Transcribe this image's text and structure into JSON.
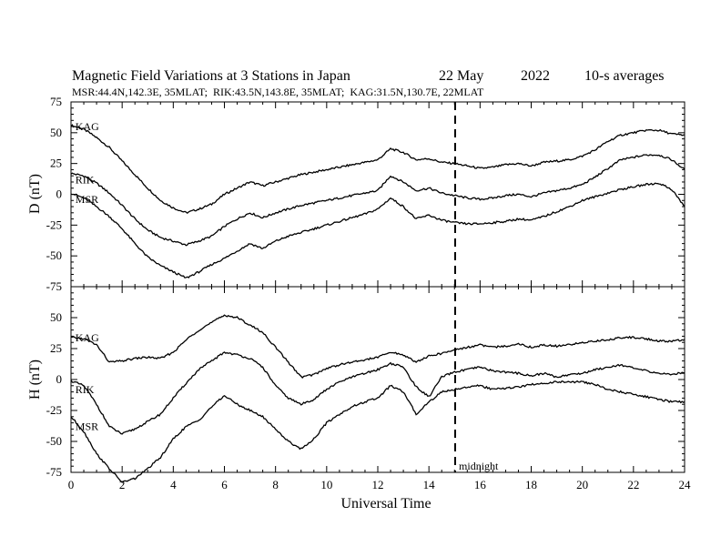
{
  "header": {
    "title": "Magnetic Field Variations at 3 Stations in Japan",
    "date": "22 May",
    "year": "2022",
    "averaging": "10-s averages",
    "stations_line": "MSR:44.4N,142.3E, 35MLAT;  RIK:43.5N,143.8E, 35MLAT;  KAG:31.5N,130.7E, 22MLAT"
  },
  "chart_data": [
    {
      "type": "line",
      "ylabel": "D (nT)",
      "xlabel": "",
      "xlim": [
        0,
        24
      ],
      "ylim": [
        -75,
        75
      ],
      "yticks": [
        -75,
        -50,
        -25,
        0,
        25,
        50,
        75
      ],
      "series": [
        {
          "name": "KAG",
          "x": [
            0,
            0.5,
            1,
            1.5,
            2,
            2.5,
            3,
            3.5,
            4,
            4.5,
            5,
            5.5,
            6,
            6.5,
            7,
            7.5,
            8,
            8.5,
            9,
            9.5,
            10,
            10.5,
            11,
            11.5,
            12,
            12.5,
            13,
            13.5,
            14,
            14.5,
            15,
            15.5,
            16,
            16.5,
            17,
            17.5,
            18,
            18.5,
            19,
            19.5,
            20,
            20.5,
            21,
            21.5,
            22,
            22.5,
            23,
            23.5,
            24
          ],
          "values": [
            56,
            53,
            46,
            38,
            27,
            16,
            5,
            -5,
            -11,
            -15,
            -12,
            -8,
            0,
            5,
            10,
            7,
            10,
            13,
            16,
            18,
            20,
            22,
            24,
            26,
            28,
            37,
            34,
            28,
            29,
            26,
            25,
            23,
            21,
            22,
            24,
            25,
            23,
            26,
            27,
            28,
            31,
            36,
            43,
            48,
            50,
            52,
            52,
            49,
            48
          ]
        },
        {
          "name": "RIK",
          "x": [
            0,
            0.5,
            1,
            1.5,
            2,
            2.5,
            3,
            3.5,
            4,
            4.5,
            5,
            5.5,
            6,
            6.5,
            7,
            7.5,
            8,
            8.5,
            9,
            9.5,
            10,
            10.5,
            11,
            11.5,
            12,
            12.5,
            13,
            13.5,
            14,
            14.5,
            15,
            15.5,
            16,
            16.5,
            17,
            17.5,
            18,
            18.5,
            19,
            19.5,
            20,
            20.5,
            21,
            21.5,
            22,
            22.5,
            23,
            23.5,
            24
          ],
          "values": [
            17,
            15,
            9,
            1,
            -9,
            -20,
            -29,
            -35,
            -38,
            -41,
            -38,
            -34,
            -26,
            -20,
            -15,
            -19,
            -15,
            -12,
            -9,
            -7,
            -5,
            -3,
            -1,
            1,
            3,
            15,
            10,
            3,
            5,
            1,
            -1,
            -3,
            -4,
            -3,
            -1,
            0,
            -2,
            1,
            3,
            5,
            8,
            14,
            21,
            28,
            30,
            32,
            32,
            28,
            20
          ]
        },
        {
          "name": "MSR",
          "x": [
            0,
            0.5,
            1,
            1.5,
            2,
            2.5,
            3,
            3.5,
            4,
            4.5,
            5,
            5.5,
            6,
            6.5,
            7,
            7.5,
            8,
            8.5,
            9,
            9.5,
            10,
            10.5,
            11,
            11.5,
            12,
            12.5,
            13,
            13.5,
            14,
            14.5,
            15,
            15.5,
            16,
            16.5,
            17,
            17.5,
            18,
            18.5,
            19,
            19.5,
            20,
            20.5,
            21,
            21.5,
            22,
            22.5,
            23,
            23.5,
            24
          ],
          "values": [
            1,
            -3,
            -10,
            -18,
            -28,
            -40,
            -51,
            -58,
            -63,
            -68,
            -63,
            -57,
            -52,
            -46,
            -40,
            -44,
            -38,
            -34,
            -31,
            -28,
            -25,
            -22,
            -19,
            -16,
            -12,
            -3,
            -10,
            -20,
            -17,
            -21,
            -23,
            -24,
            -24,
            -23,
            -22,
            -20,
            -21,
            -18,
            -14,
            -10,
            -5,
            -2,
            1,
            4,
            6,
            8,
            9,
            4,
            -10
          ]
        }
      ],
      "annotations": [
        {
          "text": "KAG",
          "x": 0.1,
          "y": 55
        },
        {
          "text": "RIK",
          "x": 0.1,
          "y": 12
        },
        {
          "text": "MSR",
          "x": 0.1,
          "y": -4
        }
      ]
    },
    {
      "type": "line",
      "ylabel": "H (nT)",
      "xlabel": "Universal Time",
      "xlim": [
        0,
        24
      ],
      "ylim": [
        -75,
        75
      ],
      "yticks": [
        -75,
        -50,
        -25,
        0,
        25,
        50
      ],
      "xticks": [
        0,
        2,
        4,
        6,
        8,
        10,
        12,
        14,
        16,
        18,
        20,
        22,
        24
      ],
      "series": [
        {
          "name": "KAG",
          "x": [
            0,
            0.5,
            1,
            1.5,
            2,
            2.5,
            3,
            3.5,
            4,
            4.5,
            5,
            5.5,
            6,
            6.5,
            7,
            7.5,
            8,
            8.5,
            9,
            9.5,
            10,
            10.5,
            11,
            11.5,
            12,
            12.5,
            13,
            13.5,
            14,
            14.5,
            15,
            15.5,
            16,
            16.5,
            17,
            17.5,
            18,
            18.5,
            19,
            19.5,
            20,
            20.5,
            21,
            21.5,
            22,
            22.5,
            23,
            23.5,
            24
          ],
          "values": [
            34,
            33,
            28,
            14,
            15,
            17,
            18,
            17,
            22,
            32,
            40,
            46,
            52,
            50,
            44,
            38,
            26,
            14,
            2,
            4,
            9,
            12,
            14,
            16,
            18,
            22,
            20,
            14,
            19,
            21,
            24,
            26,
            28,
            26,
            27,
            29,
            26,
            28,
            27,
            28,
            30,
            31,
            32,
            34,
            34,
            33,
            31,
            31,
            32
          ]
        },
        {
          "name": "RIK",
          "x": [
            0,
            0.5,
            1,
            1.5,
            2,
            2.5,
            3,
            3.5,
            4,
            4.5,
            5,
            5.5,
            6,
            6.5,
            7,
            7.5,
            8,
            8.5,
            9,
            9.5,
            10,
            10.5,
            11,
            11.5,
            12,
            12.5,
            13,
            13.5,
            14,
            14.5,
            15,
            15.5,
            16,
            16.5,
            17,
            17.5,
            18,
            18.5,
            19,
            19.5,
            20,
            20.5,
            21,
            21.5,
            22,
            22.5,
            23,
            23.5,
            24
          ],
          "values": [
            -1,
            -5,
            -20,
            -38,
            -44,
            -40,
            -34,
            -28,
            -15,
            -3,
            8,
            15,
            22,
            20,
            17,
            10,
            -5,
            -15,
            -20,
            -16,
            -8,
            -2,
            2,
            5,
            8,
            13,
            10,
            -6,
            -14,
            2,
            6,
            8,
            10,
            7,
            6,
            5,
            3,
            5,
            2,
            4,
            5,
            8,
            10,
            12,
            9,
            7,
            5,
            4,
            6
          ]
        },
        {
          "name": "MSR",
          "x": [
            0,
            0.5,
            1,
            1.5,
            2,
            2.5,
            3,
            3.5,
            4,
            4.5,
            5,
            5.5,
            6,
            6.5,
            7,
            7.5,
            8,
            8.5,
            9,
            9.5,
            10,
            10.5,
            11,
            11.5,
            12,
            12.5,
            13,
            13.5,
            14,
            14.5,
            15,
            15.5,
            16,
            16.5,
            17,
            17.5,
            18,
            18.5,
            19,
            19.5,
            20,
            20.5,
            21,
            21.5,
            22,
            22.5,
            23,
            23.5,
            24
          ],
          "values": [
            -30,
            -42,
            -60,
            -72,
            -83,
            -80,
            -72,
            -63,
            -48,
            -38,
            -33,
            -22,
            -13,
            -20,
            -25,
            -30,
            -40,
            -50,
            -56,
            -48,
            -35,
            -28,
            -22,
            -18,
            -15,
            -5,
            -10,
            -28,
            -18,
            -10,
            -8,
            -6,
            -5,
            -8,
            -7,
            -6,
            -4,
            -3,
            -2,
            -2,
            -2,
            -4,
            -8,
            -10,
            -12,
            -14,
            -16,
            -18,
            -18
          ]
        }
      ],
      "annotations": [
        {
          "text": "KAG",
          "x": 0.1,
          "y": 34
        },
        {
          "text": "RIK",
          "x": 0.1,
          "y": -8
        },
        {
          "text": "MSR",
          "x": 0.1,
          "y": -38
        },
        {
          "text": "midnight",
          "x": 15.1,
          "y": -70
        }
      ],
      "vline": {
        "x": 15,
        "style": "dashed",
        "label": "midnight"
      }
    }
  ]
}
